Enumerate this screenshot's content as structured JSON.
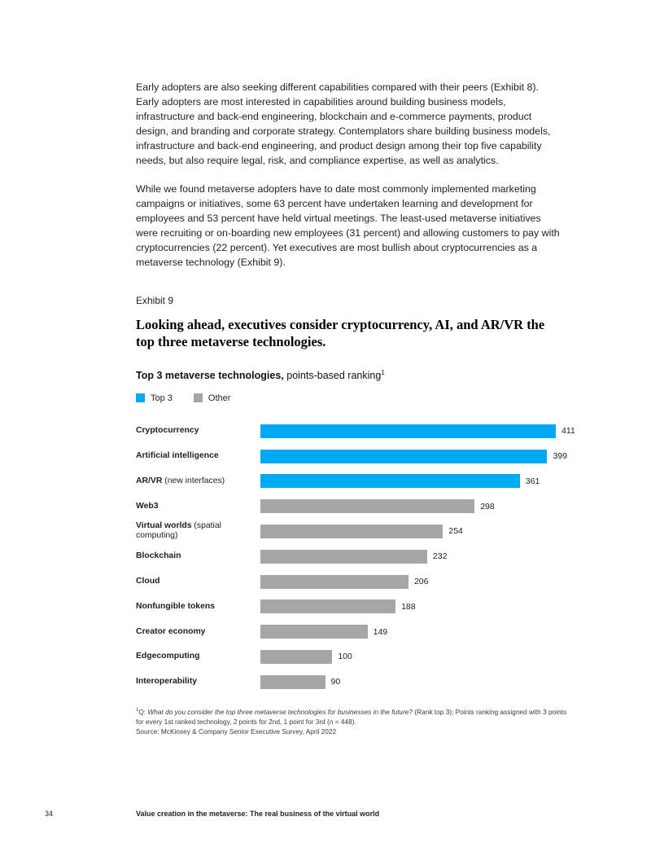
{
  "content": {
    "paragraphs": [
      "Early adopters are also seeking different capabilities compared with their peers (Exhibit 8). Early adopters are most interested in capabilities around building business models, infrastructure and back-end engineering, blockchain and e-commerce payments, product design, and branding and corporate strategy. Contemplators share building business models, infrastructure and back-end engineering, and product design among their top five capability needs, but also require legal, risk, and compliance expertise, as well as analytics.",
      "While we found metaverse adopters have to date most commonly implemented marketing campaigns or initiatives, some 63 percent have undertaken learning and development for employees and 53 percent have held virtual meetings. The least-used metaverse initiatives were recruiting or on-boarding new employees (31 percent) and allowing customers to pay with cryptocurrencies (22 percent). Yet executives are most bullish about cryptocurrencies as a metaverse technology (Exhibit 9)."
    ],
    "exhibit_label": "Exhibit 9",
    "exhibit_title": "Looking ahead, executives consider cryptocurrency, AI, and AR/VR the top three metaverse technologies."
  },
  "chart": {
    "header_bold": "Top 3 metaverse technologies,",
    "header_rest": " points-based ranking",
    "header_sup": "1",
    "legend": [
      {
        "label": "Top 3",
        "color": "#00A9F4"
      },
      {
        "label": "Other",
        "color": "#A6A6A6"
      }
    ]
  },
  "chart_data": {
    "type": "bar",
    "orientation": "horizontal",
    "title": "Top 3 metaverse technologies, points-based ranking",
    "categories": [
      {
        "bold": "Cryptocurrency",
        "rest": ""
      },
      {
        "bold": "Artificial intelligence",
        "rest": ""
      },
      {
        "bold": "AR/VR",
        "rest": "(new interfaces)"
      },
      {
        "bold": "Web3",
        "rest": ""
      },
      {
        "bold": "Virtual worlds",
        "rest": "(spatial computing)"
      },
      {
        "bold": "Blockchain",
        "rest": ""
      },
      {
        "bold": "Cloud",
        "rest": ""
      },
      {
        "bold": "Nonfungible tokens",
        "rest": ""
      },
      {
        "bold": "Creator economy",
        "rest": ""
      },
      {
        "bold": "Edgecomputing",
        "rest": ""
      },
      {
        "bold": "Interoperability",
        "rest": ""
      }
    ],
    "values": [
      411,
      399,
      361,
      298,
      254,
      232,
      206,
      188,
      149,
      100,
      90
    ],
    "groups": [
      "top3",
      "top3",
      "top3",
      "other",
      "other",
      "other",
      "other",
      "other",
      "other",
      "other",
      "other"
    ],
    "series_colors": {
      "top3": "#00A9F4",
      "other": "#A6A6A6"
    },
    "legend_entries": [
      "Top 3",
      "Other"
    ],
    "xlim": [
      0,
      420
    ],
    "grid": false,
    "value_labels_shown": true
  },
  "footnote": {
    "sup": "1",
    "q_prefix": "Q: ",
    "question": "What do you consider the top three metaverse technologies for businesses in the future?",
    "rest": " (Rank top 3); Points ranking assigned with 3 points for every 1st ranked technology, 2 points for 2nd, 1 point for 3rd (n = 448).",
    "source": "Source: McKinsey & Company Senior Executive Survey, April 2022"
  },
  "footer": {
    "page_number": "34",
    "title": "Value creation in the metaverse: The real business of the virtual world"
  }
}
